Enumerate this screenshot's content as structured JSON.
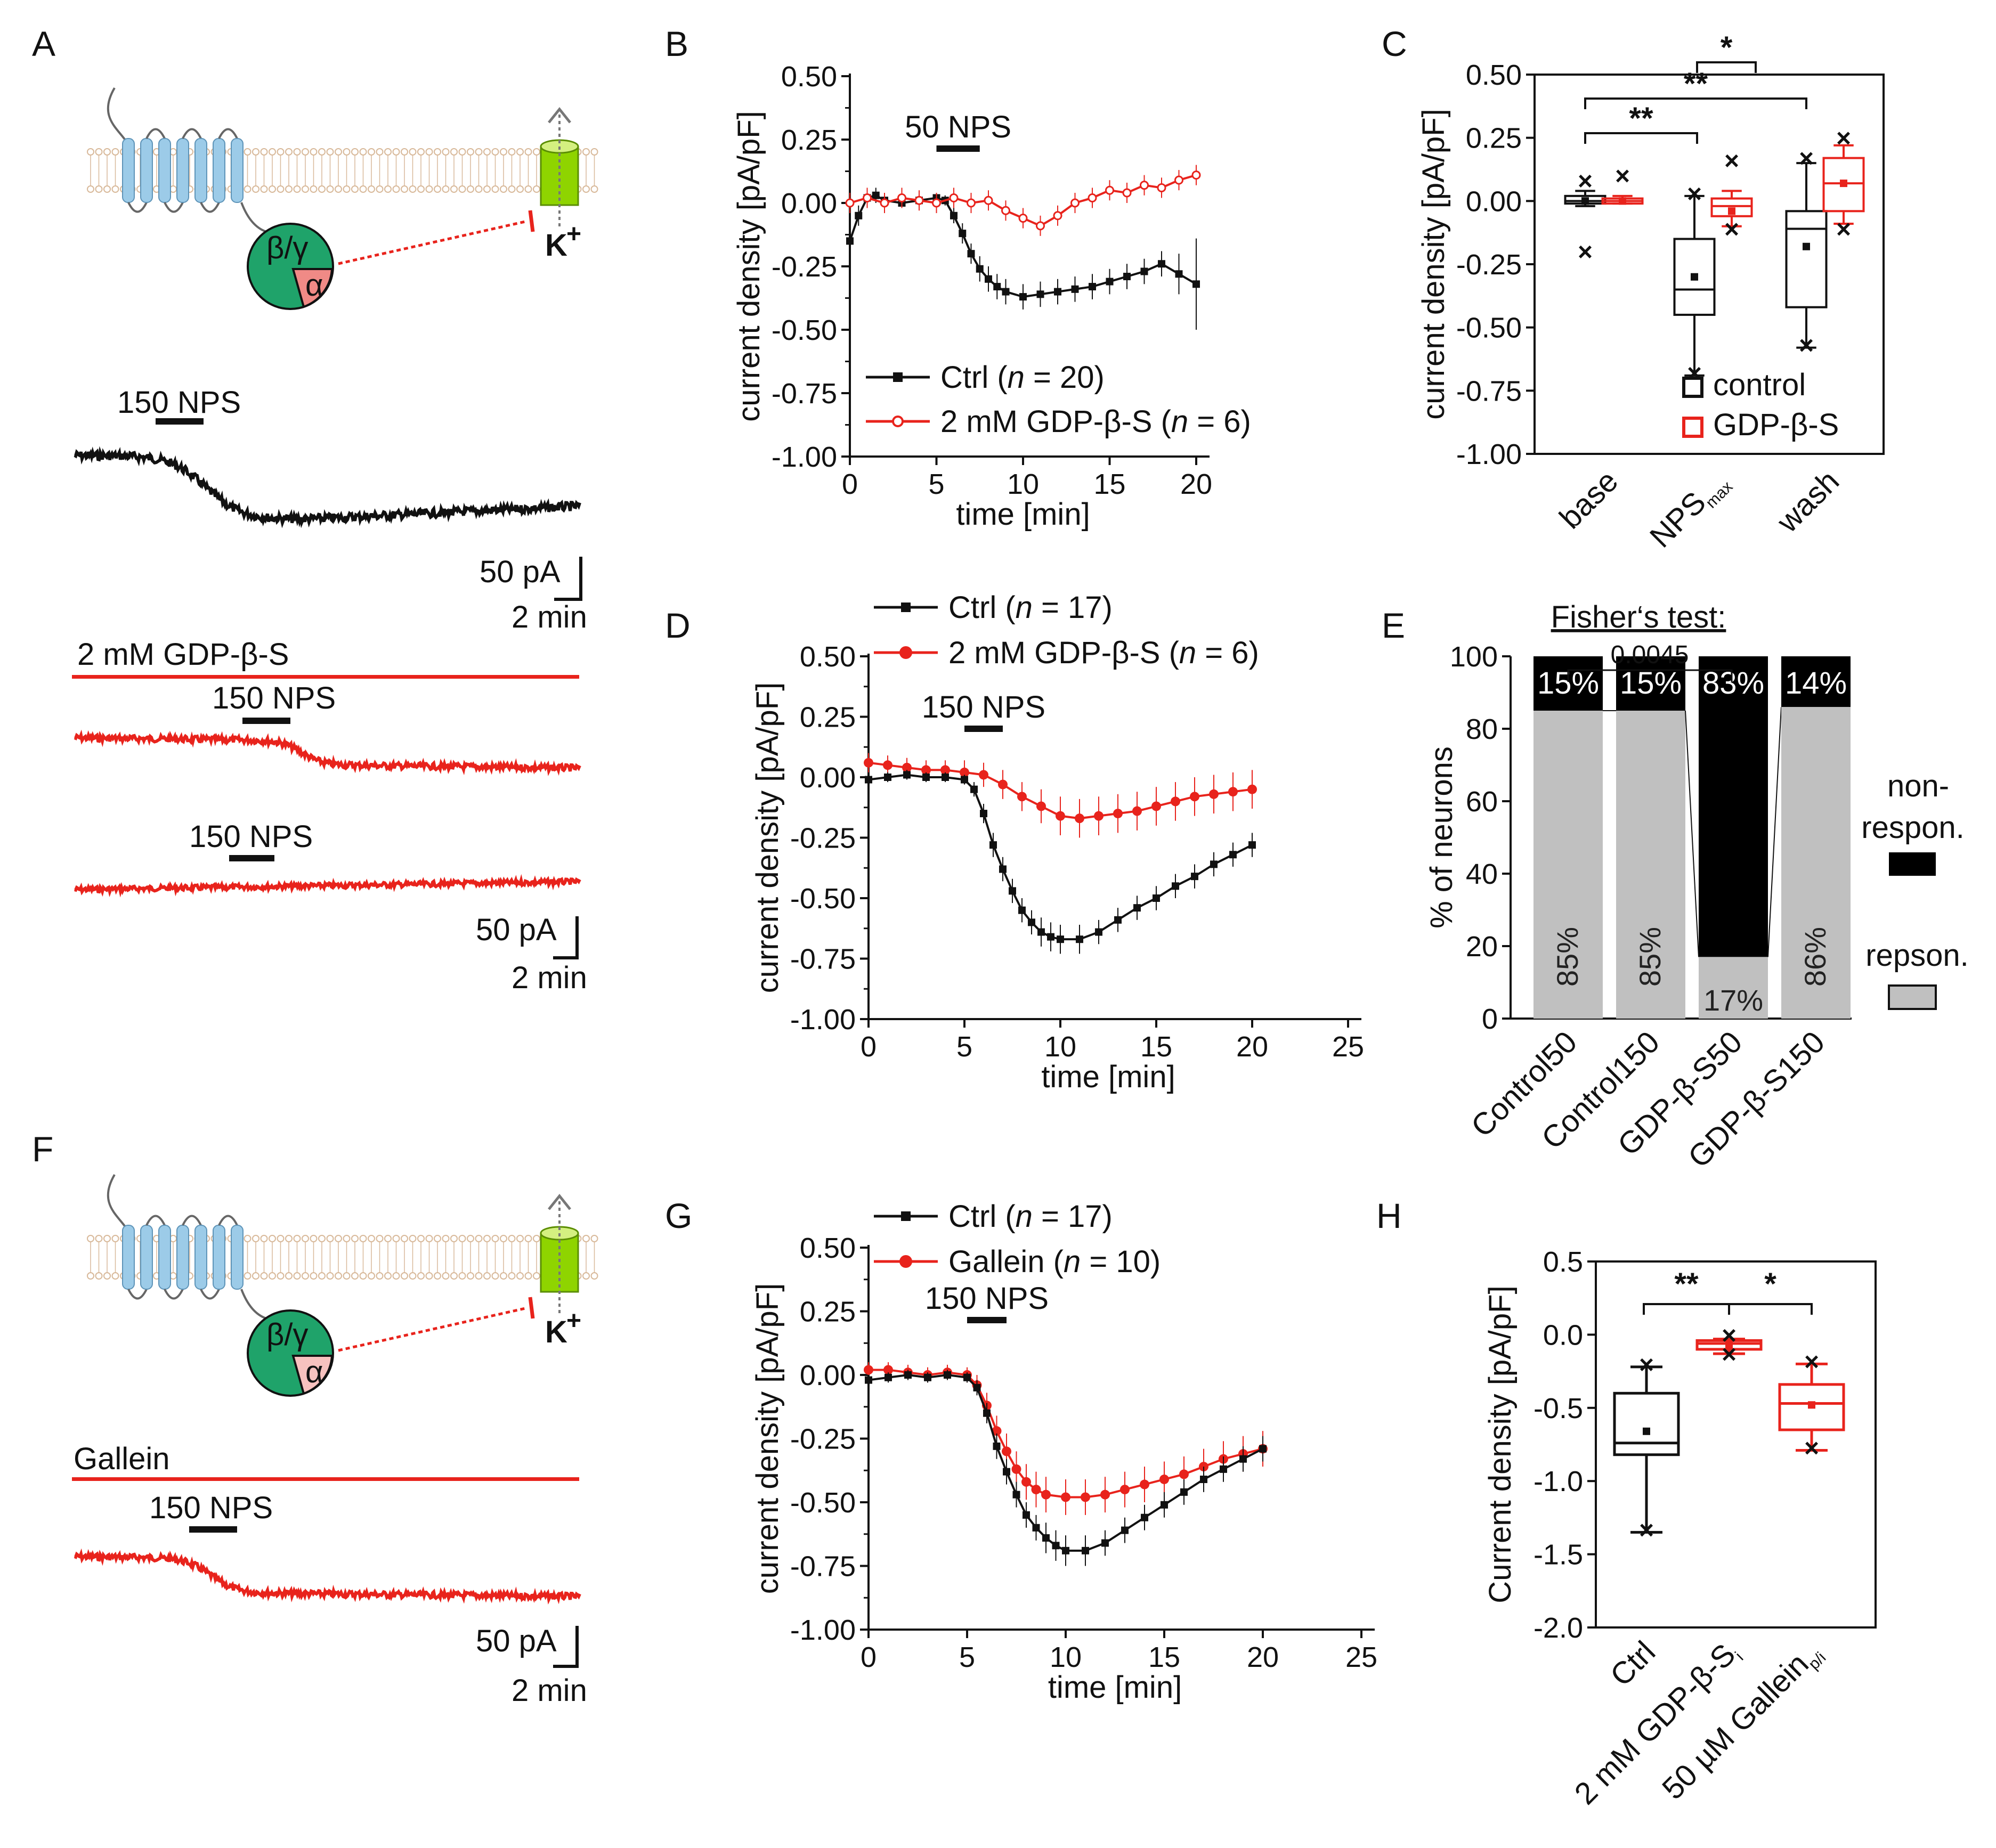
{
  "colors": {
    "black": "#111111",
    "red": "#e8231c",
    "lightred": "#f29a96",
    "gray": "#c0c0c0",
    "gfill": "#1fa36a",
    "cyl": "#8fd400",
    "membrane": "#d8b99a",
    "receptor": "#9ccbe8"
  },
  "panelA": {
    "letter": "A",
    "bg_label": "β/γ",
    "alpha_label": "α",
    "k_label": "K",
    "k_sup": "+",
    "trace1_nps": "150 NPS",
    "scale1_pa": "50 pA",
    "scale1_min": "2 min",
    "gdp_label": "2 mM GDP-β-S",
    "trace2_nps": "150 NPS",
    "trace3_nps": "150 NPS",
    "scale2_pa": "50 pA",
    "scale2_min": "2 min"
  },
  "panelF": {
    "letter": "F",
    "bg_label": "β/γ",
    "alpha_label": "α",
    "k_label": "K",
    "k_sup": "+",
    "gallein_label": "Gallein",
    "trace_nps": "150 NPS",
    "scale_pa": "50 pA",
    "scale_min": "2 min"
  },
  "chart_data": [
    {
      "id": "B",
      "letter": "B",
      "type": "line",
      "ylabel": "current density [pA/pF]",
      "xlabel": "time [min]",
      "xlim": [
        0,
        20
      ],
      "ylim": [
        -1.0,
        0.5
      ],
      "xticks": [
        "0",
        "5",
        "10",
        "15",
        "20"
      ],
      "yticks": [
        "0.50",
        "0.25",
        "0.00",
        "-0.25",
        "-0.50",
        "-0.75",
        "-1.00"
      ],
      "stim_label": "50 NPS",
      "stim_range": [
        5,
        7.5
      ],
      "series": [
        {
          "name": "Ctrl (n = 20)",
          "name_main": "Ctrl (",
          "name_n": "n",
          "name_rest": " = 20)",
          "color": "#111111",
          "marker": "square",
          "x": [
            0,
            0.5,
            1,
            1.5,
            2,
            3,
            4,
            5,
            5.5,
            6,
            6.5,
            7,
            7.5,
            8,
            8.5,
            9,
            10,
            11,
            12,
            13,
            14,
            15,
            16,
            17,
            18,
            19,
            20
          ],
          "y": [
            -0.15,
            -0.05,
            0.02,
            0.03,
            0.01,
            0.0,
            0.01,
            0.02,
            0.01,
            -0.05,
            -0.12,
            -0.2,
            -0.26,
            -0.3,
            -0.33,
            -0.35,
            -0.37,
            -0.36,
            -0.35,
            -0.34,
            -0.33,
            -0.31,
            -0.29,
            -0.27,
            -0.24,
            -0.28,
            -0.32
          ],
          "err": [
            0.05,
            0.04,
            0.03,
            0.03,
            0.02,
            0.02,
            0.02,
            0.02,
            0.02,
            0.03,
            0.04,
            0.04,
            0.05,
            0.05,
            0.05,
            0.05,
            0.05,
            0.05,
            0.05,
            0.05,
            0.05,
            0.05,
            0.05,
            0.05,
            0.05,
            0.08,
            0.18
          ]
        },
        {
          "name": "2 mM GDP-β-S (n = 6)",
          "name_main": "2 mM GDP-β-S (",
          "name_n": "n",
          "name_rest": " = 6)",
          "color": "#e8231c",
          "marker": "open-circle",
          "x": [
            0,
            1,
            2,
            3,
            4,
            5,
            6,
            7,
            8,
            9,
            10,
            11,
            12,
            13,
            14,
            15,
            16,
            17,
            18,
            19,
            20
          ],
          "y": [
            0.0,
            0.02,
            0.0,
            0.02,
            0.01,
            0.0,
            0.02,
            0.0,
            0.01,
            -0.03,
            -0.06,
            -0.09,
            -0.05,
            0.0,
            0.02,
            0.05,
            0.04,
            0.07,
            0.06,
            0.09,
            0.11
          ],
          "err": [
            0.04,
            0.04,
            0.04,
            0.04,
            0.04,
            0.04,
            0.04,
            0.04,
            0.04,
            0.04,
            0.04,
            0.04,
            0.04,
            0.04,
            0.04,
            0.04,
            0.04,
            0.04,
            0.04,
            0.04,
            0.04
          ]
        }
      ]
    },
    {
      "id": "C",
      "letter": "C",
      "type": "box",
      "ylabel": "current density [pA/pF]",
      "ylim": [
        -1.0,
        0.5
      ],
      "yticks": [
        "0.50",
        "0.25",
        "0.00",
        "-0.25",
        "-0.50",
        "-0.75",
        "-1.00"
      ],
      "categories": [
        "base",
        "NPS",
        "wash"
      ],
      "cat_sub": [
        "",
        "max",
        ""
      ],
      "series": [
        {
          "name": "control",
          "color": "#111111",
          "boxes": [
            {
              "q1": -0.01,
              "median": 0.0,
              "q3": 0.02,
              "wlo": -0.02,
              "whi": 0.04,
              "mean": 0.0,
              "outliers": [
                -0.21,
                0.07
              ]
            },
            {
              "q1": -0.45,
              "median": -0.35,
              "q3": -0.15,
              "wlo": -0.69,
              "whi": 0.02,
              "mean": -0.3,
              "outliers": [
                -0.69,
                0.02
              ]
            },
            {
              "q1": -0.42,
              "median": -0.11,
              "q3": -0.04,
              "wlo": -0.58,
              "whi": 0.15,
              "mean": -0.18,
              "outliers": [
                -0.58,
                0.16
              ]
            }
          ]
        },
        {
          "name": "GDP-β-S",
          "color": "#e8231c",
          "boxes": [
            {
              "q1": -0.01,
              "median": 0.0,
              "q3": 0.01,
              "wlo": -0.01,
              "whi": 0.02,
              "mean": 0.0,
              "outliers": [
                0.09
              ]
            },
            {
              "q1": -0.06,
              "median": -0.02,
              "q3": 0.01,
              "wlo": -0.1,
              "whi": 0.04,
              "mean": -0.04,
              "outliers": [
                -0.12,
                0.15
              ]
            },
            {
              "q1": -0.04,
              "median": 0.07,
              "q3": 0.17,
              "wlo": -0.09,
              "whi": 0.22,
              "mean": 0.07,
              "outliers": [
                -0.12,
                0.24
              ]
            }
          ]
        }
      ],
      "sig": [
        {
          "label": "*",
          "from": [
            1,
            1
          ],
          "to": [
            2,
            0
          ]
        },
        {
          "label": "**",
          "from": [
            0,
            0
          ],
          "to": [
            2,
            0
          ]
        },
        {
          "label": "**",
          "from": [
            0,
            0
          ],
          "to": [
            1,
            0
          ]
        }
      ]
    },
    {
      "id": "D",
      "letter": "D",
      "type": "line",
      "ylabel": "current density [pA/pF]",
      "xlabel": "time [min]",
      "xlim": [
        0,
        25
      ],
      "ylim": [
        -1.0,
        0.5
      ],
      "xticks": [
        "0",
        "5",
        "10",
        "15",
        "20",
        "25"
      ],
      "yticks": [
        "0.50",
        "0.25",
        "0.00",
        "-0.25",
        "-0.50",
        "-0.75",
        "-1.00"
      ],
      "stim_label": "150 NPS",
      "stim_range": [
        5,
        7
      ],
      "series": [
        {
          "name": "Ctrl (n = 17)",
          "name_main": "Ctrl (",
          "name_n": "n",
          "name_rest": " = 17)",
          "color": "#111111",
          "marker": "square",
          "x": [
            0,
            1,
            2,
            3,
            4,
            5,
            5.5,
            6,
            6.5,
            7,
            7.5,
            8,
            8.5,
            9,
            9.5,
            10,
            11,
            12,
            13,
            14,
            15,
            16,
            17,
            18,
            19,
            20
          ],
          "y": [
            -0.01,
            0.0,
            0.01,
            0.0,
            0.0,
            -0.01,
            -0.05,
            -0.15,
            -0.28,
            -0.38,
            -0.47,
            -0.55,
            -0.6,
            -0.64,
            -0.66,
            -0.67,
            -0.67,
            -0.64,
            -0.59,
            -0.54,
            -0.5,
            -0.45,
            -0.41,
            -0.36,
            -0.32,
            -0.28
          ],
          "err": [
            0.02,
            0.02,
            0.02,
            0.02,
            0.02,
            0.02,
            0.03,
            0.04,
            0.05,
            0.05,
            0.05,
            0.05,
            0.05,
            0.06,
            0.06,
            0.06,
            0.06,
            0.05,
            0.05,
            0.05,
            0.05,
            0.05,
            0.05,
            0.05,
            0.05,
            0.05
          ]
        },
        {
          "name": "2 mM GDP-β-S (n = 6)",
          "name_main": "2 mM GDP-β-S (",
          "name_n": "n",
          "name_rest": " = 6)",
          "color": "#e8231c",
          "marker": "filled-circle",
          "x": [
            0,
            1,
            2,
            3,
            4,
            5,
            6,
            7,
            8,
            9,
            10,
            11,
            12,
            13,
            14,
            15,
            16,
            17,
            18,
            19,
            20
          ],
          "y": [
            0.06,
            0.05,
            0.04,
            0.03,
            0.03,
            0.02,
            0.01,
            -0.03,
            -0.08,
            -0.12,
            -0.16,
            -0.17,
            -0.16,
            -0.15,
            -0.14,
            -0.12,
            -0.1,
            -0.08,
            -0.07,
            -0.06,
            -0.05
          ],
          "err": [
            0.04,
            0.04,
            0.04,
            0.04,
            0.04,
            0.05,
            0.05,
            0.06,
            0.06,
            0.07,
            0.08,
            0.08,
            0.08,
            0.08,
            0.08,
            0.08,
            0.08,
            0.08,
            0.08,
            0.08,
            0.08
          ]
        }
      ]
    },
    {
      "id": "E",
      "letter": "E",
      "type": "bar",
      "ylabel": "% of neurons",
      "ylim": [
        0,
        100
      ],
      "yticks": [
        "0",
        "20",
        "40",
        "60",
        "80",
        "100"
      ],
      "categories": [
        "Control50",
        "Control150",
        "GDP-β-S50",
        "GDP-β-S150"
      ],
      "series": [
        {
          "name": "repson.",
          "color": "#c0c0c0",
          "values": [
            85,
            85,
            17,
            86
          ],
          "labels": [
            "85%",
            "85%",
            "17%",
            "86%"
          ]
        },
        {
          "name": "non-respon.",
          "name_l1": "non-",
          "name_l2": "respon.",
          "color": "#000000",
          "values": [
            15,
            15,
            83,
            14
          ],
          "labels": [
            "15%",
            "15%",
            "83%",
            "14%"
          ]
        }
      ],
      "test_title": "Fisher‘s test:",
      "test_p": "0.0045"
    },
    {
      "id": "G",
      "letter": "G",
      "type": "line",
      "ylabel": "current density [pA/pF]",
      "xlabel": "time [min]",
      "xlim": [
        0,
        25
      ],
      "ylim": [
        -1.0,
        0.5
      ],
      "xticks": [
        "0",
        "5",
        "10",
        "15",
        "20",
        "25"
      ],
      "yticks": [
        "0.50",
        "0.25",
        "0.00",
        "-0.25",
        "-0.50",
        "-0.75",
        "-1.00"
      ],
      "stim_label": "150 NPS",
      "stim_range": [
        5,
        7
      ],
      "series": [
        {
          "name": "Ctrl (n = 17)",
          "name_main": "Ctrl (",
          "name_n": "n",
          "name_rest": " = 17)",
          "color": "#111111",
          "marker": "square",
          "x": [
            0,
            1,
            2,
            3,
            4,
            5,
            5.5,
            6,
            6.5,
            7,
            7.5,
            8,
            8.5,
            9,
            9.5,
            10,
            11,
            12,
            13,
            14,
            15,
            16,
            17,
            18,
            19,
            20
          ],
          "y": [
            -0.02,
            -0.01,
            0.0,
            -0.01,
            0.0,
            -0.01,
            -0.05,
            -0.15,
            -0.28,
            -0.38,
            -0.47,
            -0.55,
            -0.6,
            -0.64,
            -0.67,
            -0.69,
            -0.69,
            -0.66,
            -0.61,
            -0.56,
            -0.51,
            -0.46,
            -0.41,
            -0.37,
            -0.33,
            -0.29
          ],
          "err": [
            0.02,
            0.02,
            0.02,
            0.02,
            0.02,
            0.02,
            0.03,
            0.04,
            0.05,
            0.05,
            0.05,
            0.05,
            0.05,
            0.06,
            0.06,
            0.06,
            0.06,
            0.05,
            0.05,
            0.05,
            0.05,
            0.05,
            0.05,
            0.05,
            0.05,
            0.05
          ]
        },
        {
          "name": "Gallein (n = 10)",
          "name_main": "Gallein (",
          "name_n": "n",
          "name_rest": " = 10)",
          "color": "#e8231c",
          "marker": "filled-circle",
          "x": [
            0,
            1,
            2,
            3,
            4,
            5,
            5.5,
            6,
            6.5,
            7,
            7.5,
            8,
            8.5,
            9,
            10,
            11,
            12,
            13,
            14,
            15,
            16,
            17,
            18,
            19,
            20
          ],
          "y": [
            0.02,
            0.02,
            0.01,
            0.0,
            0.01,
            0.0,
            -0.04,
            -0.12,
            -0.22,
            -0.3,
            -0.37,
            -0.42,
            -0.45,
            -0.47,
            -0.48,
            -0.48,
            -0.47,
            -0.45,
            -0.43,
            -0.41,
            -0.39,
            -0.36,
            -0.33,
            -0.31,
            -0.29
          ],
          "err": [
            0.03,
            0.03,
            0.03,
            0.03,
            0.03,
            0.03,
            0.04,
            0.05,
            0.06,
            0.07,
            0.07,
            0.07,
            0.07,
            0.07,
            0.07,
            0.07,
            0.07,
            0.07,
            0.07,
            0.07,
            0.07,
            0.07,
            0.07,
            0.07,
            0.07
          ]
        }
      ]
    },
    {
      "id": "H",
      "letter": "H",
      "type": "box",
      "ylabel": "Current density [pA/pF]",
      "ylim": [
        -2.0,
        0.5
      ],
      "yticks": [
        "0.5",
        "0.0",
        "-0.5",
        "-1.0",
        "-1.5",
        "-2.0"
      ],
      "categories": [
        "Ctrl",
        "2 mM GDP-β-S",
        "50 µM Gallein"
      ],
      "cat_sub": [
        "",
        "i",
        "p/i"
      ],
      "boxes": [
        {
          "color": "#111111",
          "q1": -0.82,
          "median": -0.74,
          "q3": -0.4,
          "wlo": -1.35,
          "whi": -0.22,
          "mean": -0.66,
          "outliers": [
            -1.35,
            -0.22
          ]
        },
        {
          "color": "#e8231c",
          "q1": -0.1,
          "median": -0.06,
          "q3": -0.04,
          "wlo": -0.13,
          "whi": -0.03,
          "mean": -0.07,
          "outliers": [
            -0.02,
            -0.15
          ]
        },
        {
          "color": "#e8231c",
          "q1": -0.65,
          "median": -0.47,
          "q3": -0.34,
          "wlo": -0.79,
          "whi": -0.2,
          "mean": -0.48,
          "outliers": [
            -0.79,
            -0.2
          ]
        }
      ],
      "sig": [
        {
          "label": "**",
          "from": 0,
          "to": 1
        },
        {
          "label": "*",
          "from": 1,
          "to": 2
        }
      ]
    }
  ]
}
